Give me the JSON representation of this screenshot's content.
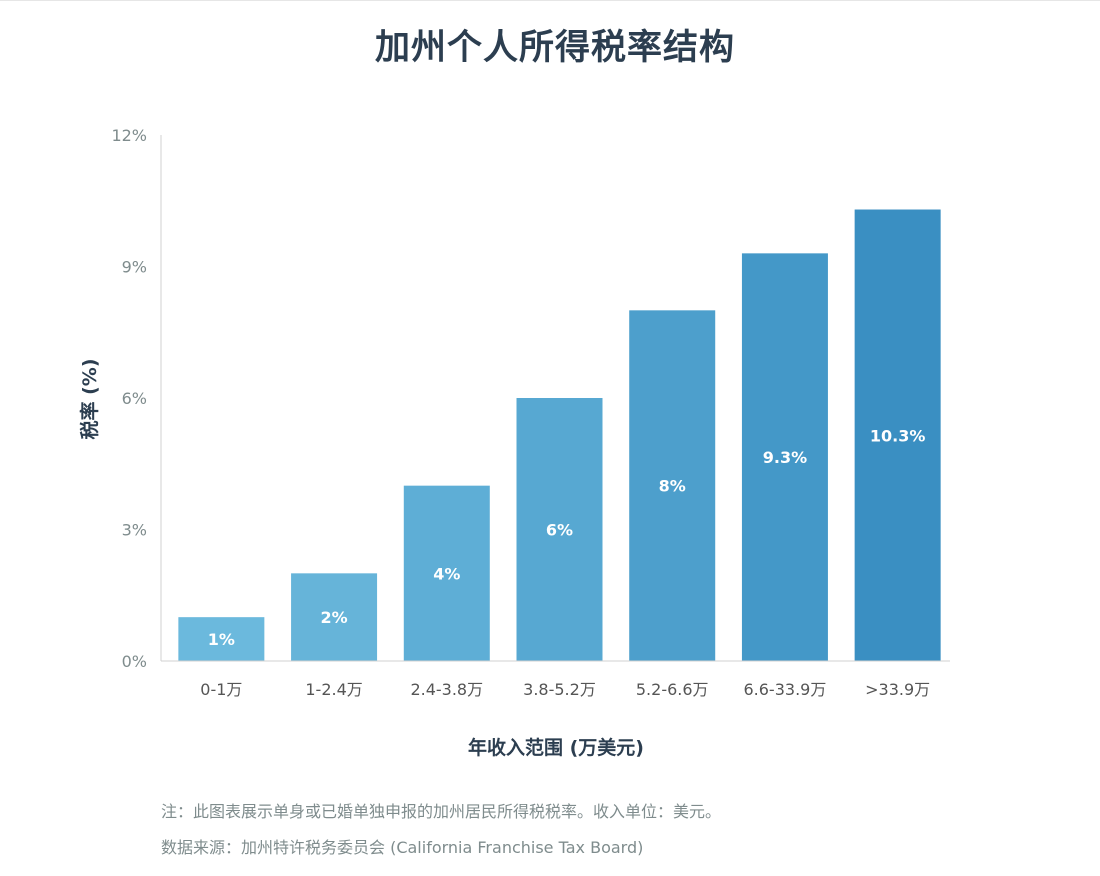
{
  "chart_data": {
    "type": "bar",
    "title": "加州个人所得税率结构",
    "xlabel": "年收入范围 (万美元)",
    "ylabel": "税率 (%)",
    "categories": [
      "0-1万",
      "1-2.4万",
      "2.4-3.8万",
      "3.8-5.2万",
      "5.2-6.6万",
      "6.6-33.9万",
      ">33.9万"
    ],
    "values": [
      1,
      2,
      4,
      6,
      8,
      9.3,
      10.3
    ],
    "data_labels": [
      "1%",
      "2%",
      "4%",
      "6%",
      "8%",
      "9.3%",
      "10.3%"
    ],
    "y_ticks": [
      0,
      3,
      6,
      9,
      12
    ],
    "y_tick_labels": [
      "0%",
      "3%",
      "6%",
      "9%",
      "12%"
    ],
    "ylim": [
      0,
      12
    ],
    "grid": false,
    "legend": false,
    "bar_colors": [
      "#6bb9dd",
      "#66b4d9",
      "#5eaed6",
      "#57a8d2",
      "#4d9fcc",
      "#4498c8",
      "#3a8fc2"
    ],
    "label_color": "#ffffff",
    "axis_color": "#d0d0d0",
    "tick_label_color": "#7f8c8d",
    "title_color": "#2c3e50"
  },
  "notes": {
    "line1": "注：此图表展示单身或已婚单独申报的加州居民所得税税率。收入单位：美元。",
    "line2": "数据来源：加州特许税务委员会 (California Franchise Tax Board)"
  }
}
